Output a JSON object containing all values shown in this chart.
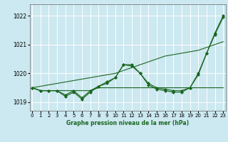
{
  "xlabel": "Graphe pression niveau de la mer (hPa)",
  "ylim": [
    1018.7,
    1022.4
  ],
  "yticks": [
    1019,
    1020,
    1021,
    1022
  ],
  "xticks": [
    0,
    1,
    2,
    3,
    4,
    5,
    6,
    7,
    8,
    9,
    10,
    11,
    12,
    13,
    14,
    15,
    16,
    17,
    18,
    19,
    20,
    21,
    22,
    23
  ],
  "xlim": [
    -0.3,
    23.3
  ],
  "background_color": "#cce8f0",
  "grid_color": "#ffffff",
  "line_color": "#1a6620",
  "series": [
    {
      "x": [
        0,
        1,
        2,
        3,
        4,
        5,
        6,
        7,
        8,
        9,
        10,
        11,
        12,
        13,
        14,
        15,
        16,
        17,
        18,
        19,
        20,
        21,
        22,
        23
      ],
      "y": [
        1019.5,
        1019.4,
        1019.4,
        1019.4,
        1019.4,
        1019.4,
        1019.4,
        1019.4,
        1019.5,
        1019.5,
        1019.5,
        1019.5,
        1019.5,
        1019.5,
        1019.5,
        1019.5,
        1019.5,
        1019.5,
        1019.5,
        1019.5,
        1019.5,
        1019.5,
        1019.5,
        1019.5
      ],
      "marker": null,
      "lw": 0.8
    },
    {
      "x": [
        0,
        1,
        2,
        3,
        4,
        5,
        6,
        7,
        8,
        9,
        10,
        11,
        12,
        13,
        14,
        15,
        16,
        17,
        18,
        19,
        20,
        21,
        22,
        23
      ],
      "y": [
        1019.5,
        1019.55,
        1019.6,
        1019.65,
        1019.7,
        1019.75,
        1019.8,
        1019.85,
        1019.9,
        1019.95,
        1020.0,
        1020.1,
        1020.2,
        1020.3,
        1020.4,
        1020.5,
        1020.6,
        1020.65,
        1020.7,
        1020.75,
        1020.8,
        1020.9,
        1021.0,
        1021.1
      ],
      "marker": null,
      "lw": 0.8
    },
    {
      "x": [
        0,
        1,
        2,
        3,
        4,
        5,
        6,
        7,
        8,
        9,
        10,
        11,
        12,
        13,
        14,
        15,
        16,
        17,
        18,
        19,
        20,
        21,
        22,
        23
      ],
      "y": [
        1019.5,
        1019.4,
        1019.4,
        1019.4,
        1019.25,
        1019.4,
        1019.15,
        1019.4,
        1019.55,
        1019.65,
        1019.85,
        1020.3,
        1020.25,
        1020.0,
        1019.65,
        1019.5,
        1019.45,
        1019.4,
        1019.4,
        1019.5,
        1019.95,
        1020.7,
        1021.35,
        1021.95
      ],
      "marker": "D",
      "lw": 0.8
    },
    {
      "x": [
        0,
        1,
        2,
        3,
        4,
        5,
        6,
        7,
        8,
        9,
        10,
        11,
        12,
        13,
        14,
        15,
        16,
        17,
        18,
        19,
        20,
        21,
        22,
        23
      ],
      "y": [
        1019.5,
        1019.4,
        1019.4,
        1019.4,
        1019.2,
        1019.35,
        1019.1,
        1019.35,
        1019.55,
        1019.7,
        1019.85,
        1020.3,
        1020.3,
        1020.0,
        1019.6,
        1019.45,
        1019.4,
        1019.35,
        1019.35,
        1019.5,
        1020.0,
        1020.7,
        1021.4,
        1022.0
      ],
      "marker": "D",
      "lw": 0.9
    }
  ]
}
